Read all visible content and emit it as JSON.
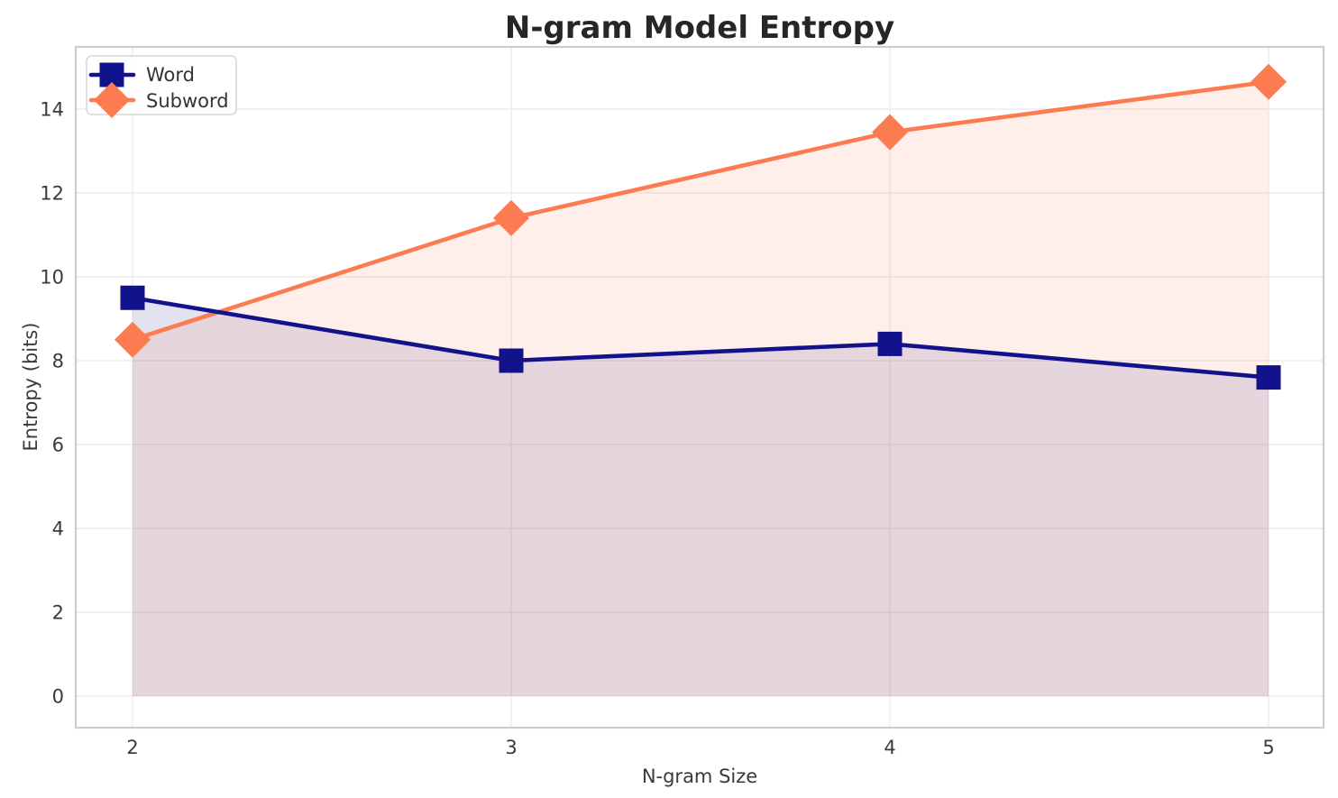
{
  "chart_data": {
    "type": "line",
    "title": "N-gram Model Entropy",
    "xlabel": "N-gram Size",
    "ylabel": "Entropy (bits)",
    "x": [
      2,
      3,
      4,
      5
    ],
    "series": [
      {
        "name": "Word",
        "values": [
          9.5,
          8.0,
          8.4,
          7.6
        ],
        "color": "#12128c",
        "marker": "square"
      },
      {
        "name": "Subword",
        "values": [
          8.5,
          11.4,
          13.45,
          14.65
        ],
        "color": "#fc7b50",
        "marker": "diamond"
      }
    ],
    "xticks": [
      "2",
      "3",
      "4",
      "5"
    ],
    "xtick_values": [
      2,
      3,
      4,
      5
    ],
    "yticks": [
      "0",
      "2",
      "4",
      "6",
      "8",
      "10",
      "12",
      "14"
    ],
    "ytick_values": [
      0,
      2,
      4,
      6,
      8,
      10,
      12,
      14
    ],
    "xlim": [
      1.85,
      5.15
    ],
    "ylim": [
      -0.75,
      15.45
    ],
    "grid": true,
    "legend_position": "upper left",
    "fill_to_zero": true,
    "fill_opacity": 0.12,
    "colors": {
      "grid": "#ececec",
      "spine": "#cccccc",
      "background": "#ffffff"
    }
  }
}
